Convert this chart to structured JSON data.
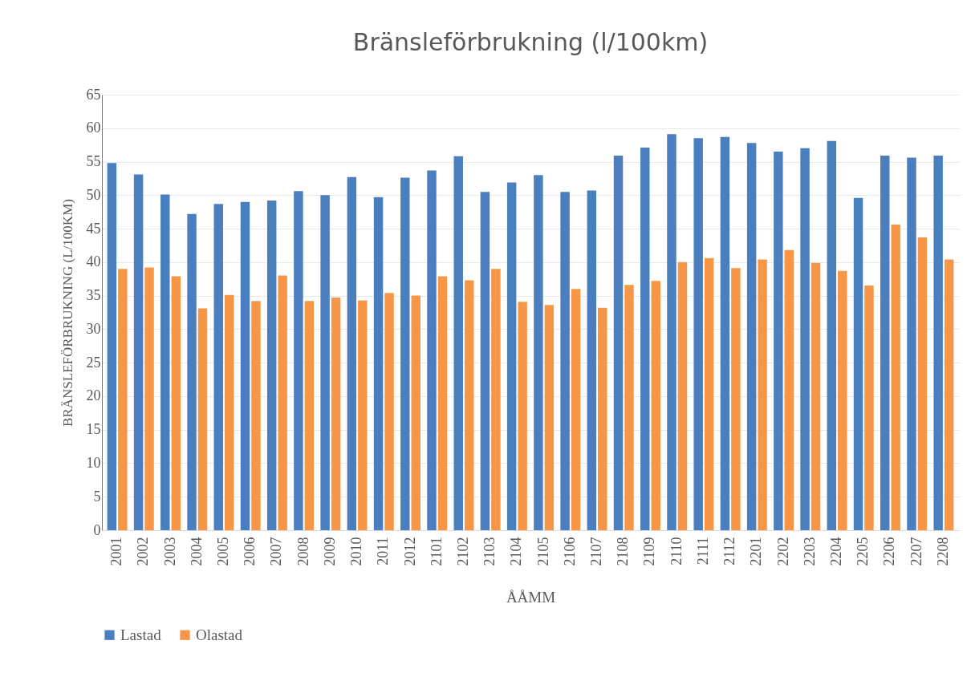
{
  "chart_data": {
    "type": "bar",
    "title": "Bränsleförbrukning (l/100km)",
    "xlabel": "ÅÅMM",
    "ylabel": "BRÄNSLEFÖRBRUKNING (L/100KM)",
    "categories": [
      "2001",
      "2002",
      "2003",
      "2004",
      "2005",
      "2006",
      "2007",
      "2008",
      "2009",
      "2010",
      "2011",
      "2012",
      "2101",
      "2102",
      "2103",
      "2104",
      "2105",
      "2106",
      "2107",
      "2108",
      "2109",
      "2110",
      "2111",
      "2112",
      "2201",
      "2202",
      "2203",
      "2204",
      "2205",
      "2206",
      "2207",
      "2208"
    ],
    "series": [
      {
        "name": "Lastad",
        "color": "#4a7ebf",
        "values": [
          54.8,
          53.1,
          50.1,
          47.2,
          48.7,
          49.0,
          49.2,
          50.6,
          50.0,
          52.7,
          49.7,
          52.6,
          53.7,
          55.8,
          50.5,
          51.9,
          53.0,
          50.5,
          50.7,
          55.9,
          57.1,
          59.1,
          58.5,
          58.7,
          57.8,
          56.5,
          57.0,
          58.1,
          49.6,
          55.9,
          55.6,
          55.9
        ]
      },
      {
        "name": "Olastad",
        "color": "#f79646",
        "values": [
          39.0,
          39.2,
          37.9,
          33.1,
          35.1,
          34.2,
          38.0,
          34.2,
          34.7,
          34.3,
          35.4,
          35.0,
          37.9,
          37.3,
          39.0,
          34.1,
          33.6,
          36.0,
          33.2,
          36.6,
          37.2,
          40.0,
          40.6,
          39.1,
          40.4,
          41.8,
          39.9,
          38.7,
          36.5,
          45.6,
          43.7,
          40.4
        ]
      }
    ],
    "ylim": [
      0,
      65
    ],
    "yticks": [
      0,
      5,
      10,
      15,
      20,
      25,
      30,
      35,
      40,
      45,
      50,
      55,
      60,
      65
    ],
    "grid": "y",
    "legend": "bottom"
  }
}
